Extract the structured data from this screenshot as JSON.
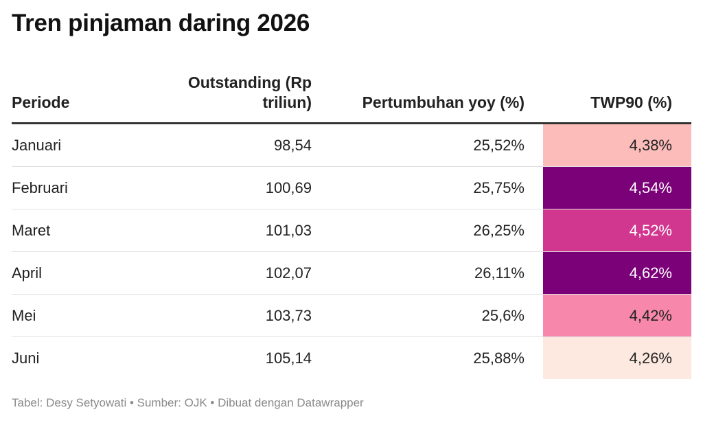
{
  "title": "Tren pinjaman daring 2026",
  "headers": {
    "periode": "Periode",
    "outstanding": "Outstanding (Rp triliun)",
    "growth": "Pertumbuhan yoy (%)",
    "twp90": "TWP90 (%)"
  },
  "rows": [
    {
      "periode": "Januari",
      "outstanding": "98,54",
      "growth": "25,52%",
      "twp90": "4,38%"
    },
    {
      "periode": "Februari",
      "outstanding": "100,69",
      "growth": "25,75%",
      "twp90": "4,54%"
    },
    {
      "periode": "Maret",
      "outstanding": "101,03",
      "growth": "26,25%",
      "twp90": "4,52%"
    },
    {
      "periode": "April",
      "outstanding": "102,07",
      "growth": "26,11%",
      "twp90": "4,62%"
    },
    {
      "periode": "Mei",
      "outstanding": "103,73",
      "growth": "25,6%",
      "twp90": "4,42%"
    },
    {
      "periode": "Juni",
      "outstanding": "105,14",
      "growth": "25,88%",
      "twp90": "4,26%"
    }
  ],
  "heatmap_colors": {
    "Januari": "#fbbcba",
    "Februari": "#7a0177",
    "Maret": "#d1378f",
    "April": "#7a0177",
    "Mei": "#f787ab",
    "Juni": "#fde9e0"
  },
  "heatmap_text_colors": {
    "light": "#ffffff",
    "dark": "#222222"
  },
  "footer": "Tabel: Desy Setyowati • Sumber: OJK • Dibuat dengan Datawrapper",
  "chart_data": {
    "type": "table",
    "columns": [
      "Periode",
      "Outstanding (Rp triliun)",
      "Pertumbuhan yoy (%)",
      "TWP90 (%)"
    ],
    "rows": [
      [
        "Januari",
        98.54,
        25.52,
        4.38
      ],
      [
        "Februari",
        100.69,
        25.75,
        4.54
      ],
      [
        "Maret",
        101.03,
        26.25,
        4.52
      ],
      [
        "April",
        102.07,
        26.11,
        4.62
      ],
      [
        "Mei",
        103.73,
        25.6,
        4.42
      ],
      [
        "Juni",
        105.14,
        25.88,
        4.26
      ]
    ],
    "title": "Tren pinjaman daring 2026"
  }
}
